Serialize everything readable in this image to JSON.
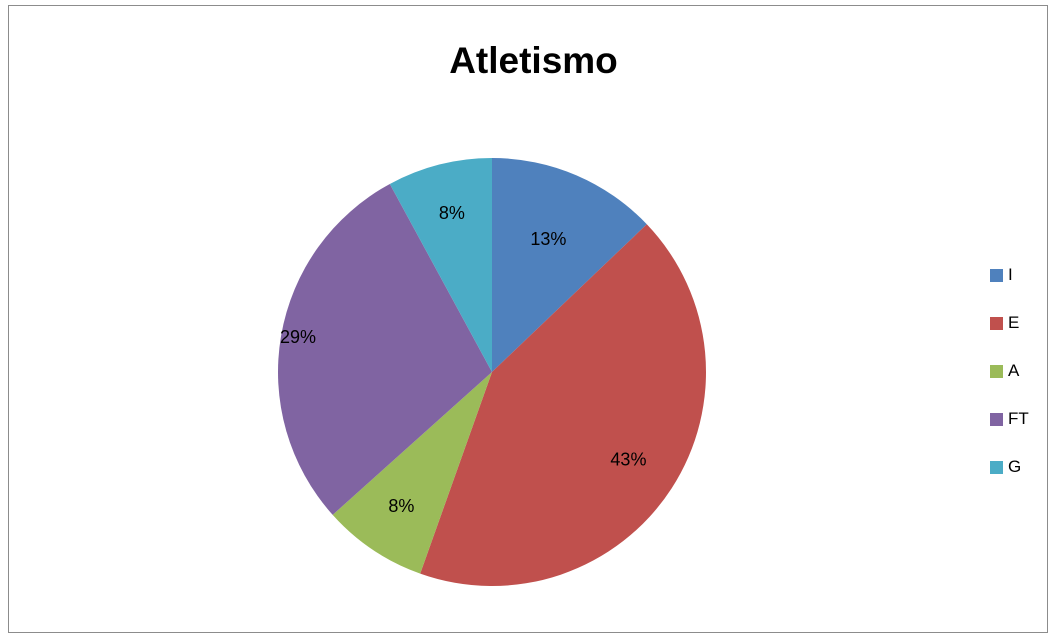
{
  "chart_data": {
    "type": "pie",
    "title": "Atletismo",
    "categories": [
      "I",
      "E",
      "A",
      "FT",
      "G"
    ],
    "values": [
      13,
      43,
      8,
      29,
      8
    ],
    "data_labels": [
      "13%",
      "43%",
      "8%",
      "29%",
      "8%"
    ],
    "colors": [
      "#4f81bd",
      "#c0504d",
      "#9bbb59",
      "#8064a2",
      "#4bacc6"
    ],
    "legend_position": "right",
    "start_angle": "12 o'clock, clockwise"
  }
}
